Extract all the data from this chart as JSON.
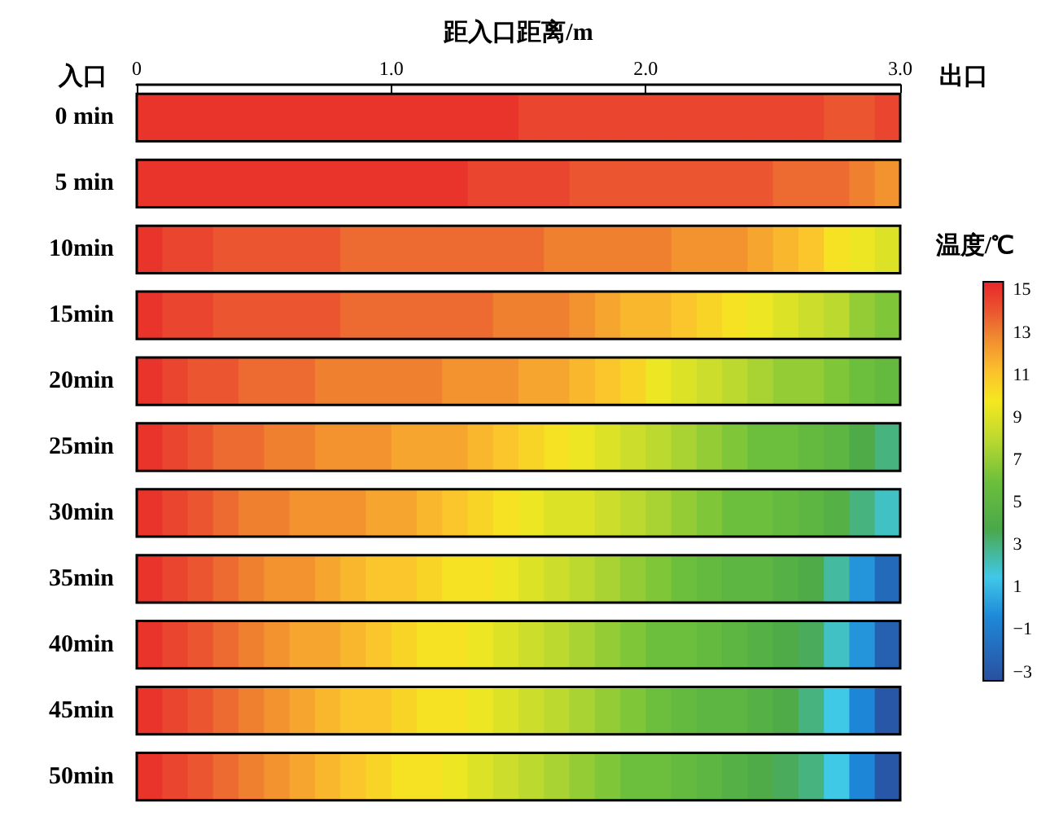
{
  "chart_data": {
    "type": "heatmap",
    "xlabel": "距入口距离/m",
    "clabel": "温度/℃",
    "annotations": [
      "入口",
      "出口"
    ],
    "x": [
      0.05,
      0.15,
      0.25,
      0.35,
      0.45,
      0.55,
      0.65,
      0.75,
      0.85,
      0.95,
      1.05,
      1.15,
      1.25,
      1.35,
      1.45,
      1.55,
      1.65,
      1.75,
      1.85,
      1.95,
      2.05,
      2.15,
      2.25,
      2.35,
      2.45,
      2.55,
      2.65,
      2.75,
      2.85,
      2.95
    ],
    "xlim": [
      0,
      3
    ],
    "xticks": [
      0,
      {
        "value": 1,
        "label": "1.0"
      },
      {
        "value": 2,
        "label": "2.0"
      },
      {
        "value": 3,
        "label": "3.0"
      }
    ],
    "y_categories": [
      "0 min",
      "5 min",
      "10min",
      "15min",
      "20min",
      "25min",
      "30min",
      "35min",
      "40min",
      "45min",
      "50min"
    ],
    "cells": [
      [
        15,
        15,
        15,
        15,
        15,
        15,
        15,
        15,
        15,
        15,
        15,
        15,
        15,
        15,
        15,
        14.5,
        14.5,
        14.5,
        14.5,
        14.5,
        14.5,
        14.5,
        14.5,
        14.5,
        14.5,
        14.5,
        14.5,
        14,
        14,
        14.5
      ],
      [
        15,
        15,
        15,
        15,
        15,
        15,
        15,
        15,
        15,
        15,
        15,
        15,
        15,
        14.5,
        14.5,
        14.5,
        14.5,
        14,
        14,
        14,
        14,
        14,
        14,
        14,
        14,
        13.5,
        13.5,
        13.5,
        13,
        12.5
      ],
      [
        15,
        14.5,
        14.5,
        14,
        14,
        14,
        14,
        14,
        13.5,
        13.5,
        13.5,
        13.5,
        13.5,
        13.5,
        13.5,
        13.5,
        13,
        13,
        13,
        13,
        13,
        12.5,
        12.5,
        12.5,
        12,
        11.5,
        11,
        10,
        9.5,
        9
      ],
      [
        15,
        14.5,
        14.5,
        14,
        14,
        14,
        14,
        14,
        13.5,
        13.5,
        13.5,
        13.5,
        13.5,
        13.5,
        13,
        13,
        13,
        12.5,
        12,
        11.5,
        11.5,
        11,
        10.5,
        10,
        9.5,
        9,
        8.5,
        8,
        7,
        6.5
      ],
      [
        15,
        14.5,
        14,
        14,
        13.5,
        13.5,
        13.5,
        13,
        13,
        13,
        13,
        13,
        12.5,
        12.5,
        12.5,
        12,
        12,
        11.5,
        11,
        10.5,
        9.5,
        9,
        8.5,
        8,
        7.5,
        7,
        7,
        6.5,
        6,
        5.5
      ],
      [
        15,
        14.5,
        14,
        13.5,
        13.5,
        13,
        13,
        12.5,
        12.5,
        12.5,
        12,
        12,
        12,
        11.5,
        11,
        10.5,
        10,
        9.5,
        9,
        8.5,
        8,
        7.5,
        7,
        6.5,
        6,
        6,
        5.5,
        5,
        4,
        3
      ],
      [
        15,
        14.5,
        14,
        13.5,
        13,
        13,
        12.5,
        12.5,
        12.5,
        12,
        12,
        11.5,
        11,
        10.5,
        10,
        9.5,
        9,
        9,
        8.5,
        8,
        7.5,
        7,
        6.5,
        6,
        6,
        5.5,
        5,
        4.5,
        3,
        2
      ],
      [
        15,
        14.5,
        14,
        13.5,
        13,
        12.5,
        12.5,
        12,
        11.5,
        11,
        11,
        10.5,
        10,
        10,
        9.5,
        9,
        8.5,
        8,
        7.5,
        7,
        6.5,
        6,
        5.5,
        5,
        5,
        4.5,
        4,
        2.5,
        0,
        -2
      ],
      [
        15,
        14.5,
        14,
        13.5,
        13,
        12.5,
        12,
        12,
        11.5,
        11,
        10.5,
        10,
        10,
        9.5,
        9,
        8.5,
        8,
        7.5,
        7,
        6.5,
        6,
        6,
        5.5,
        5,
        4.5,
        4,
        3.5,
        2,
        0,
        -2.5
      ],
      [
        15,
        14.5,
        14,
        13.5,
        13,
        12.5,
        12,
        11.5,
        11,
        11,
        10.5,
        10,
        10,
        9.5,
        9,
        8.5,
        8,
        7.5,
        7,
        6.5,
        6,
        5.5,
        5,
        5,
        4.5,
        4,
        3,
        1.5,
        -0.5,
        -3
      ],
      [
        15,
        14.5,
        14,
        13.5,
        13,
        12.5,
        12,
        11.5,
        11,
        10.5,
        10,
        10,
        9.5,
        9,
        8.5,
        8,
        7.5,
        7,
        6.5,
        6,
        6,
        5.5,
        5,
        4.5,
        4,
        3.5,
        3,
        1.5,
        -0.5,
        -3
      ]
    ],
    "clim": [
      -3.4,
      15.4
    ],
    "cticks": [
      15,
      13,
      11,
      9,
      7,
      5,
      3,
      1,
      {
        "value": -1,
        "label": "−1"
      },
      {
        "value": -3,
        "label": "−3"
      }
    ]
  }
}
